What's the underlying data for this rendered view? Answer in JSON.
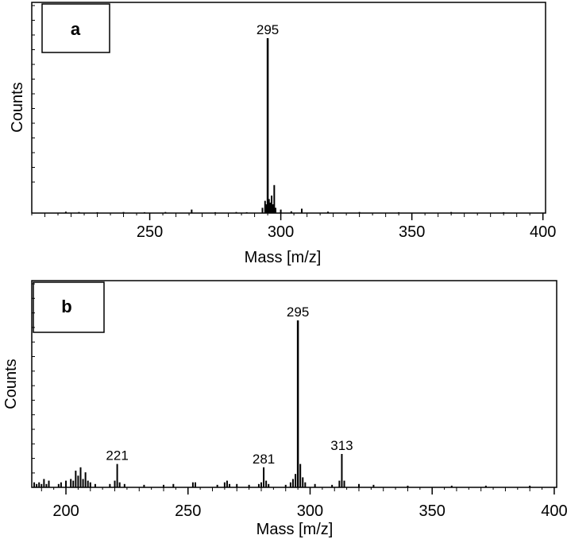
{
  "chart_data": [
    {
      "panel_label": "a",
      "type": "bar",
      "xlabel": "Mass [m/z]",
      "ylabel": "Counts",
      "xlim": [
        205,
        401
      ],
      "ylim": [
        0,
        1
      ],
      "xticks": [
        250,
        300,
        350,
        400
      ],
      "peak_labels": [
        {
          "x": 295,
          "text": "295"
        }
      ],
      "x": [
        218,
        223,
        230,
        240,
        248,
        256,
        266,
        275,
        283,
        287,
        293,
        294,
        294.5,
        295,
        295.5,
        296,
        296.5,
        297,
        297.5,
        298,
        300,
        304,
        308,
        318,
        330,
        345,
        365,
        385
      ],
      "values": [
        0.008,
        0.006,
        0.005,
        0.006,
        0.005,
        0.006,
        0.02,
        0.005,
        0.006,
        0.005,
        0.03,
        0.07,
        0.05,
        1.0,
        0.08,
        0.06,
        0.1,
        0.05,
        0.16,
        0.03,
        0.02,
        0.01,
        0.025,
        0.008,
        0.006,
        0.005,
        0.006,
        0.005
      ]
    },
    {
      "panel_label": "b",
      "type": "bar",
      "xlabel": "Mass [m/z]",
      "ylabel": "Counts",
      "xlim": [
        186,
        401
      ],
      "ylim": [
        0,
        1
      ],
      "xticks": [
        200,
        250,
        300,
        350,
        400
      ],
      "peak_labels": [
        {
          "x": 221,
          "text": "221"
        },
        {
          "x": 281,
          "text": "281"
        },
        {
          "x": 295,
          "text": "295"
        },
        {
          "x": 313,
          "text": "313"
        }
      ],
      "x": [
        187,
        188,
        189,
        190,
        191,
        192,
        193,
        197,
        198,
        200,
        202,
        203,
        204,
        205,
        206,
        207,
        208,
        209,
        210,
        212,
        218,
        220,
        221,
        222,
        224,
        232,
        240,
        244,
        252,
        253,
        262,
        265,
        266,
        267,
        270,
        275,
        279,
        280,
        281,
        282,
        283,
        290,
        292,
        293,
        294,
        295,
        296,
        297,
        298,
        302,
        309,
        312,
        313,
        314,
        320,
        326,
        340,
        358,
        372,
        390
      ],
      "values": [
        0.03,
        0.02,
        0.03,
        0.02,
        0.05,
        0.02,
        0.04,
        0.02,
        0.03,
        0.04,
        0.05,
        0.04,
        0.1,
        0.07,
        0.12,
        0.05,
        0.09,
        0.04,
        0.03,
        0.02,
        0.02,
        0.04,
        0.14,
        0.03,
        0.02,
        0.015,
        0.015,
        0.02,
        0.03,
        0.03,
        0.015,
        0.03,
        0.04,
        0.02,
        0.02,
        0.015,
        0.02,
        0.03,
        0.12,
        0.04,
        0.02,
        0.015,
        0.03,
        0.05,
        0.08,
        1.0,
        0.14,
        0.06,
        0.03,
        0.02,
        0.015,
        0.04,
        0.2,
        0.04,
        0.02,
        0.015,
        0.01,
        0.01,
        0.01,
        0.01
      ]
    }
  ]
}
